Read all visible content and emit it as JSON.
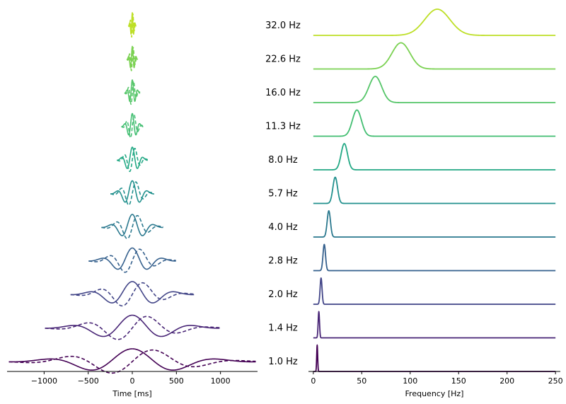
{
  "chart_data": [
    {
      "type": "line",
      "panel": "left",
      "title": "",
      "xlabel": "Time [ms]",
      "ylabel": "",
      "xlim": [
        -1420,
        1420
      ],
      "xticks": [
        -1000,
        -500,
        0,
        500,
        1000
      ],
      "xtick_labels": [
        "−1000",
        "−500",
        "0",
        "500",
        "1000"
      ],
      "series_description": "Morlet wavelets (solid = real part, dashed = imaginary part), one per frequency, stacked bottom (1.0 Hz) to top (32.0 Hz)",
      "wavelets": [
        {
          "freq_hz": 1.0,
          "half_width_ms": 1400,
          "color": "#440154"
        },
        {
          "freq_hz": 1.4,
          "half_width_ms": 990,
          "color": "#482576"
        },
        {
          "freq_hz": 2.0,
          "half_width_ms": 700,
          "color": "#414487"
        },
        {
          "freq_hz": 2.8,
          "half_width_ms": 495,
          "color": "#35608d"
        },
        {
          "freq_hz": 4.0,
          "half_width_ms": 350,
          "color": "#2a788e"
        },
        {
          "freq_hz": 5.7,
          "half_width_ms": 248,
          "color": "#21908d"
        },
        {
          "freq_hz": 8.0,
          "half_width_ms": 175,
          "color": "#22a884"
        },
        {
          "freq_hz": 11.3,
          "half_width_ms": 124,
          "color": "#42be71"
        },
        {
          "freq_hz": 16.0,
          "half_width_ms": 88,
          "color": "#54c568"
        },
        {
          "freq_hz": 22.6,
          "half_width_ms": 62,
          "color": "#7ad151"
        },
        {
          "freq_hz": 32.0,
          "half_width_ms": 44,
          "color": "#bddf26"
        }
      ]
    },
    {
      "type": "line",
      "panel": "right",
      "title": "",
      "xlabel": "Frequency [Hz]",
      "ylabel": "",
      "xlim": [
        -5,
        255
      ],
      "xticks": [
        0,
        50,
        100,
        150,
        200,
        250
      ],
      "xtick_labels": [
        "0",
        "50",
        "100",
        "150",
        "200",
        "250"
      ],
      "series_description": "Frequency response (Gaussian peak) of each wavelet, stacked bottom to top",
      "series": [
        {
          "name": "1.0 Hz",
          "label": "1.0 Hz",
          "peak_x": 4,
          "sigma": 0.5,
          "color": "#440154"
        },
        {
          "name": "1.4 Hz",
          "label": "1.4 Hz",
          "peak_x": 5.7,
          "sigma": 0.7,
          "color": "#482576"
        },
        {
          "name": "2.0 Hz",
          "label": "2.0 Hz",
          "peak_x": 8,
          "sigma": 1.0,
          "color": "#414487"
        },
        {
          "name": "2.8 Hz",
          "label": "2.8 Hz",
          "peak_x": 11.3,
          "sigma": 1.3,
          "color": "#35608d"
        },
        {
          "name": "4.0 Hz",
          "label": "4.0 Hz",
          "peak_x": 16,
          "sigma": 1.7,
          "color": "#2a788e"
        },
        {
          "name": "5.7 Hz",
          "label": "5.7 Hz",
          "peak_x": 22.6,
          "sigma": 2.4,
          "color": "#21908d"
        },
        {
          "name": "8.0 Hz",
          "label": "8.0 Hz",
          "peak_x": 32,
          "sigma": 3.3,
          "color": "#22a884"
        },
        {
          "name": "11.3 Hz",
          "label": "11.3 Hz",
          "peak_x": 45,
          "sigma": 4.7,
          "color": "#42be71"
        },
        {
          "name": "16.0 Hz",
          "label": "16.0 Hz",
          "peak_x": 64,
          "sigma": 6.6,
          "color": "#54c568"
        },
        {
          "name": "22.6 Hz",
          "label": "22.6 Hz",
          "peak_x": 90.5,
          "sigma": 9.3,
          "color": "#7ad151"
        },
        {
          "name": "32.0 Hz",
          "label": "32.0 Hz",
          "peak_x": 128,
          "sigma": 13,
          "color": "#bddf26"
        }
      ]
    }
  ]
}
